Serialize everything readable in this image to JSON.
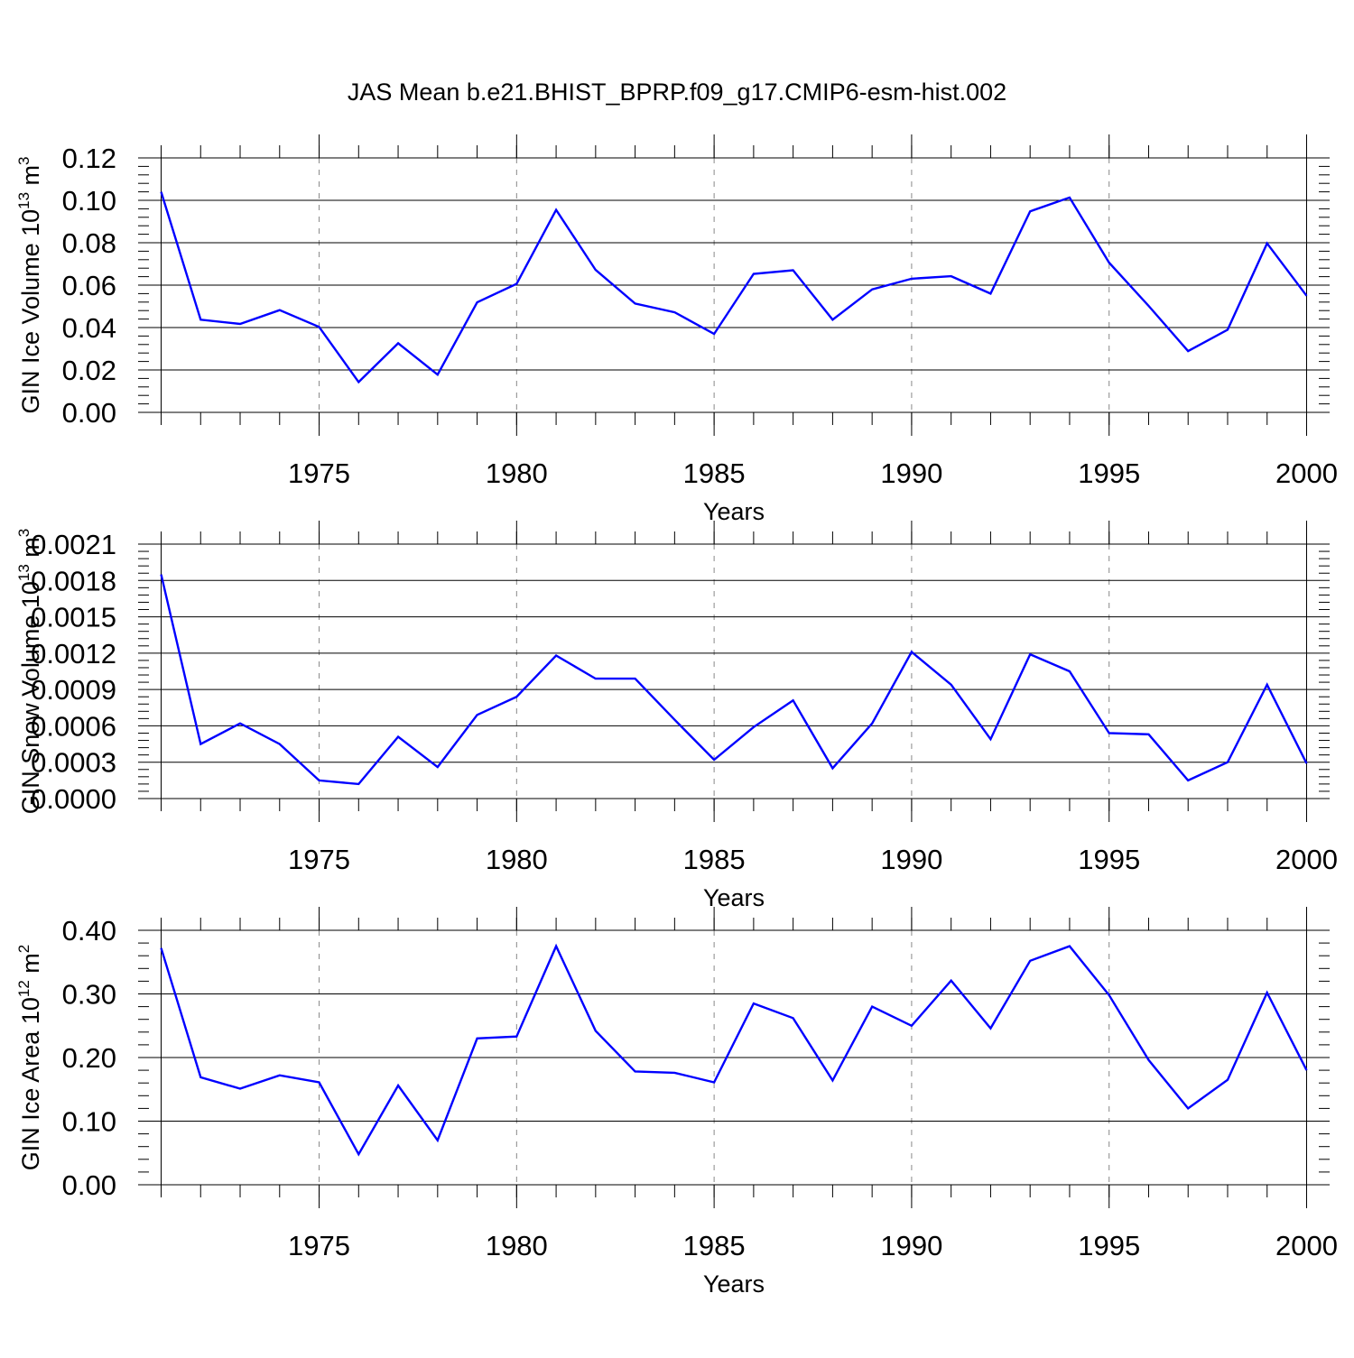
{
  "title": "JAS Mean b.e21.BHIST_BPRP.f09_g17.CMIP6-esm-hist.002",
  "colors": {
    "line": "#0000ff",
    "axis": "#000000",
    "grid": "#888888"
  },
  "chart_data": [
    {
      "type": "line",
      "xlabel": "Years",
      "ylabel_main": "GIN Ice Volume 10",
      "ylabel_exp": "13",
      "ylabel_unit": "m",
      "ylabel_unit_exp": "3",
      "xlim": [
        1971,
        2000
      ],
      "ylim": [
        0,
        0.12
      ],
      "yticks": [
        0.0,
        0.02,
        0.04,
        0.06,
        0.08,
        0.1,
        0.12
      ],
      "ytick_labels": [
        "0.00",
        "0.02",
        "0.04",
        "0.06",
        "0.08",
        "0.10",
        "0.12"
      ],
      "xticks": [
        1975,
        1980,
        1985,
        1990,
        1995,
        2000
      ],
      "xtick_labels": [
        "1975",
        "1980",
        "1985",
        "1990",
        "1995",
        "2000"
      ],
      "series": [
        {
          "name": "GIN Ice Volume",
          "x": [
            1971,
            1972,
            1973,
            1974,
            1975,
            1976,
            1977,
            1978,
            1979,
            1980,
            1981,
            1982,
            1983,
            1984,
            1985,
            1986,
            1987,
            1988,
            1989,
            1990,
            1991,
            1992,
            1993,
            1994,
            1995,
            1996,
            1997,
            1998,
            1999,
            2000
          ],
          "values": [
            0.104,
            0.0437,
            0.0417,
            0.0482,
            0.0403,
            0.0143,
            0.0326,
            0.0178,
            0.0519,
            0.0606,
            0.0955,
            0.0672,
            0.0513,
            0.0472,
            0.037,
            0.0653,
            0.067,
            0.0437,
            0.058,
            0.063,
            0.0642,
            0.056,
            0.0948,
            0.1013,
            0.0706,
            0.0502,
            0.0289,
            0.039,
            0.0797,
            0.055
          ]
        }
      ]
    },
    {
      "type": "line",
      "xlabel": "Years",
      "ylabel_main": "GIN Snow Volume 10",
      "ylabel_exp": "13",
      "ylabel_unit": "m",
      "ylabel_unit_exp": "3",
      "xlim": [
        1971,
        2000
      ],
      "ylim": [
        0,
        0.0021
      ],
      "yticks": [
        0.0,
        0.0003,
        0.0006,
        0.0009,
        0.0012,
        0.0015,
        0.0018,
        0.0021
      ],
      "ytick_labels": [
        "0.0000",
        "0.0003",
        "0.0006",
        "0.0009",
        "0.0012",
        "0.0015",
        "0.0018",
        "0.0021"
      ],
      "xticks": [
        1975,
        1980,
        1985,
        1990,
        1995,
        2000
      ],
      "xtick_labels": [
        "1975",
        "1980",
        "1985",
        "1990",
        "1995",
        "2000"
      ],
      "series": [
        {
          "name": "GIN Snow Volume",
          "x": [
            1971,
            1972,
            1973,
            1974,
            1975,
            1976,
            1977,
            1978,
            1979,
            1980,
            1981,
            1982,
            1983,
            1984,
            1985,
            1986,
            1987,
            1988,
            1989,
            1990,
            1991,
            1992,
            1993,
            1994,
            1995,
            1996,
            1997,
            1998,
            1999,
            2000
          ],
          "values": [
            0.00185,
            0.00045,
            0.00062,
            0.00045,
            0.00015,
            0.00012,
            0.00051,
            0.00026,
            0.00069,
            0.00084,
            0.00118,
            0.00099,
            0.00099,
            0.00065,
            0.00032,
            0.00059,
            0.00081,
            0.00025,
            0.00062,
            0.00121,
            0.00094,
            0.00049,
            0.00119,
            0.00105,
            0.00054,
            0.00053,
            0.00015,
            0.0003,
            0.00094,
            0.00029
          ]
        }
      ]
    },
    {
      "type": "line",
      "xlabel": "Years",
      "ylabel_main": "GIN Ice Area 10",
      "ylabel_exp": "12",
      "ylabel_unit": "m",
      "ylabel_unit_exp": "2",
      "xlim": [
        1971,
        2000
      ],
      "ylim": [
        0,
        0.4
      ],
      "yticks": [
        0.0,
        0.1,
        0.2,
        0.3,
        0.4
      ],
      "ytick_labels": [
        "0.00",
        "0.10",
        "0.20",
        "0.30",
        "0.40"
      ],
      "xticks": [
        1975,
        1980,
        1985,
        1990,
        1995,
        2000
      ],
      "xtick_labels": [
        "1975",
        "1980",
        "1985",
        "1990",
        "1995",
        "2000"
      ],
      "series": [
        {
          "name": "GIN Ice Area",
          "x": [
            1971,
            1972,
            1973,
            1974,
            1975,
            1976,
            1977,
            1978,
            1979,
            1980,
            1981,
            1982,
            1983,
            1984,
            1985,
            1986,
            1987,
            1988,
            1989,
            1990,
            1991,
            1992,
            1993,
            1994,
            1995,
            1996,
            1997,
            1998,
            1999,
            2000
          ],
          "values": [
            0.372,
            0.169,
            0.151,
            0.172,
            0.161,
            0.048,
            0.156,
            0.07,
            0.23,
            0.233,
            0.375,
            0.242,
            0.178,
            0.176,
            0.161,
            0.285,
            0.262,
            0.164,
            0.28,
            0.25,
            0.321,
            0.246,
            0.352,
            0.375,
            0.298,
            0.196,
            0.12,
            0.165,
            0.302,
            0.18
          ]
        }
      ]
    }
  ]
}
